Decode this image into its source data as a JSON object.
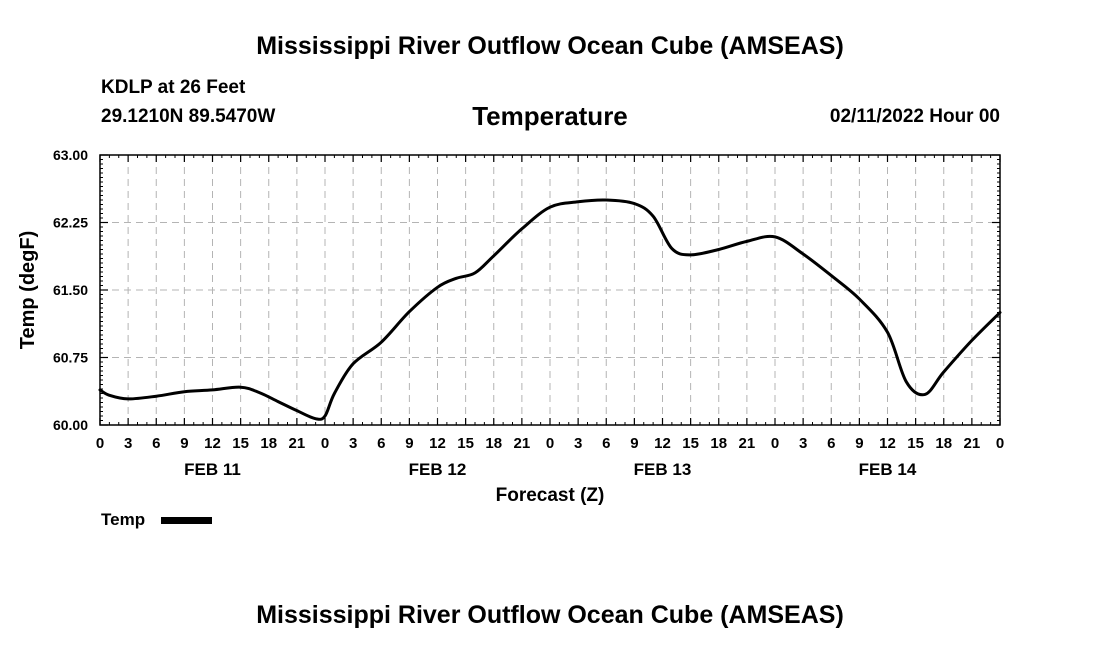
{
  "header": {
    "title": "Mississippi River Outflow Ocean Cube (AMSEAS)",
    "station": "KDLP at 26 Feet",
    "coords": "29.1210N  89.5470W",
    "subtitle": "Temperature",
    "datetime": "02/11/2022 Hour 00"
  },
  "footer": {
    "title": "Mississippi River Outflow Ocean Cube (AMSEAS)"
  },
  "legend": {
    "label": "Temp"
  },
  "chart_data": {
    "type": "line",
    "title": "Temperature",
    "xlabel": "Forecast (Z)",
    "ylabel": "Temp (degF)",
    "xlim": [
      0,
      96
    ],
    "ylim": [
      60.0,
      63.0
    ],
    "yticks": [
      "60.00",
      "60.75",
      "61.50",
      "62.25",
      "63.00"
    ],
    "xtick_labels": [
      "0",
      "3",
      "6",
      "9",
      "12",
      "15",
      "18",
      "21",
      "0",
      "3",
      "6",
      "9",
      "12",
      "15",
      "18",
      "21",
      "0",
      "3",
      "6",
      "9",
      "12",
      "15",
      "18",
      "21",
      "0",
      "3",
      "6",
      "9",
      "12",
      "15",
      "18",
      "21",
      "0"
    ],
    "day_labels": [
      {
        "label": "FEB 11",
        "x": 12
      },
      {
        "label": "FEB 12",
        "x": 36
      },
      {
        "label": "FEB 13",
        "x": 60
      },
      {
        "label": "FEB 14",
        "x": 84
      }
    ],
    "grid": true,
    "series": [
      {
        "name": "Temp",
        "x": [
          0,
          1,
          3,
          6,
          9,
          12,
          15,
          17,
          19,
          21,
          23,
          24,
          25,
          27,
          30,
          33,
          36,
          38,
          40,
          42,
          45,
          48,
          51,
          54,
          57,
          59,
          61,
          63,
          66,
          69,
          72,
          75,
          78,
          81,
          84,
          86,
          88,
          90,
          93,
          96
        ],
        "values": [
          60.39,
          60.33,
          60.29,
          60.32,
          60.37,
          60.39,
          60.42,
          60.36,
          60.26,
          60.16,
          60.07,
          60.1,
          60.35,
          60.68,
          60.92,
          61.26,
          61.53,
          61.63,
          61.69,
          61.88,
          62.18,
          62.42,
          62.48,
          62.5,
          62.46,
          62.32,
          61.96,
          61.89,
          61.95,
          62.04,
          62.09,
          61.9,
          61.66,
          61.4,
          61.03,
          60.48,
          60.34,
          60.59,
          60.94,
          61.25
        ]
      }
    ]
  }
}
